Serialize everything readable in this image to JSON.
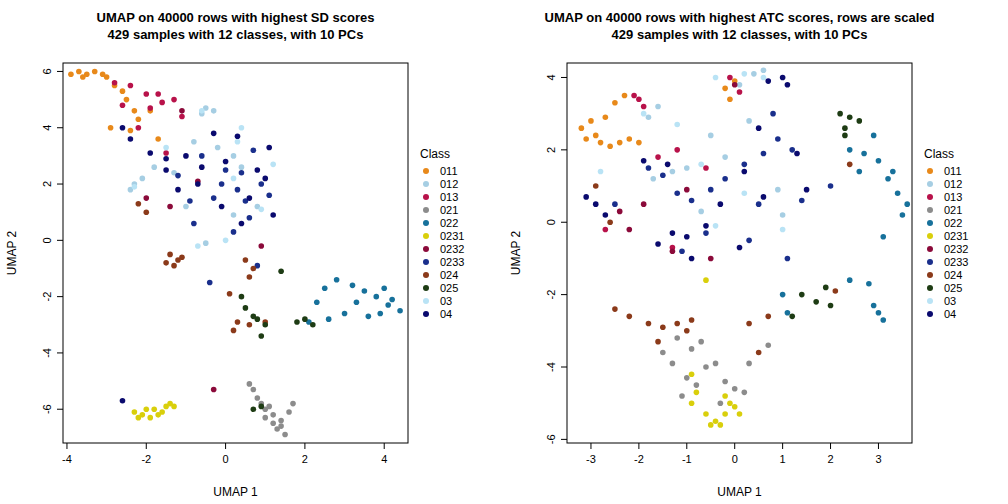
{
  "chart_data": [
    {
      "type": "scatter",
      "title": "UMAP on 40000 rows with highest SD scores",
      "subtitle": "429 samples with 12 classes, with 10 PCs",
      "x_label": "UMAP 1",
      "y_label": "UMAP 2",
      "legend_title": "Class",
      "legend": "right",
      "marker": "circle",
      "xlim": [
        -4.1,
        4.6
      ],
      "ylim": [
        -7.2,
        6.3
      ],
      "xticks": [
        -4,
        -2,
        0,
        2,
        4
      ],
      "yticks": [
        -6,
        -4,
        -2,
        0,
        2,
        4,
        6
      ],
      "series": [
        {
          "name": "011",
          "color": "#e8891a",
          "x": [
            -3.9,
            -3.7,
            -3.5,
            -3.3,
            -3.1,
            -3.0,
            -3.6,
            -2.8,
            -2.5,
            -2.3,
            -1.9,
            -2.9,
            -2.4,
            -1.7,
            -2.2,
            -2.6
          ],
          "y": [
            5.9,
            6.0,
            5.9,
            6.0,
            5.9,
            5.8,
            5.8,
            5.5,
            5.0,
            4.6,
            4.6,
            4.0,
            3.9,
            3.6,
            4.3,
            5.3
          ]
        },
        {
          "name": "012",
          "color": "#a6cee3",
          "x": [
            -0.5,
            -0.3,
            -0.6,
            -2.3,
            -2.4,
            -2.1,
            -1.3,
            -0.8,
            -0.2,
            0.2,
            -1.0,
            0.8,
            -0.5,
            0.2,
            -1.8,
            0.4
          ],
          "y": [
            4.7,
            4.6,
            4.5,
            2.0,
            1.8,
            2.2,
            2.4,
            3.5,
            3.3,
            3.0,
            1.2,
            1.2,
            -0.1,
            0.9,
            2.6,
            2.6
          ]
        },
        {
          "name": "013",
          "color": "#b8124a",
          "x": [
            -2.8,
            -2.4,
            -2.0,
            -1.7,
            -1.3,
            -1.9,
            -1.6,
            -2.2,
            -1.1,
            -1.5,
            -2.6
          ],
          "y": [
            5.6,
            5.5,
            5.2,
            5.2,
            5.0,
            4.7,
            4.9,
            4.0,
            4.4,
            3.1,
            4.8
          ]
        },
        {
          "name": "021",
          "color": "#8c8c8c",
          "x": [
            0.6,
            0.7,
            0.8,
            0.9,
            1.0,
            1.2,
            1.4,
            1.3,
            1.5,
            1.2,
            1.6,
            1.7,
            1.0,
            1.1,
            1.4
          ],
          "y": [
            -5.1,
            -5.3,
            -5.6,
            -5.8,
            -6.0,
            -6.2,
            -6.4,
            -6.7,
            -6.9,
            -6.5,
            -6.1,
            -5.8,
            -6.3,
            -5.9,
            -6.6
          ]
        },
        {
          "name": "022",
          "color": "#17719b",
          "x": [
            2.8,
            3.2,
            3.5,
            3.8,
            4.1,
            4.4,
            4.0,
            3.3,
            3.0,
            3.6,
            2.6,
            2.3,
            3.9,
            2.5,
            2.1,
            4.2
          ],
          "y": [
            -1.4,
            -1.6,
            -1.8,
            -2.0,
            -2.3,
            -2.5,
            -1.7,
            -2.2,
            -2.6,
            -2.7,
            -2.8,
            -2.2,
            -2.6,
            -1.7,
            -2.9,
            -2.1
          ]
        },
        {
          "name": "0231",
          "color": "#d9cf0b",
          "x": [
            -2.3,
            -2.1,
            -1.9,
            -1.8,
            -1.6,
            -1.5,
            -2.2,
            -1.7,
            -2.0,
            -1.4,
            -1.3
          ],
          "y": [
            -6.1,
            -6.2,
            -6.3,
            -6.0,
            -6.1,
            -5.9,
            -6.3,
            -6.2,
            -6.0,
            -5.8,
            -5.9
          ]
        },
        {
          "name": "0232",
          "color": "#8b0a3a",
          "x": [
            -0.3,
            -1.1,
            -1.4,
            0.9,
            -0.7,
            -2.0
          ],
          "y": [
            -5.3,
            4.6,
            1.2,
            -0.2,
            2.1,
            1.5
          ]
        },
        {
          "name": "0233",
          "color": "#1a2f8c",
          "x": [
            0.0,
            0.3,
            -0.3,
            0.5,
            -0.8,
            0.7,
            0.9,
            0.2,
            -1.2,
            -0.6,
            0.6,
            1.1,
            -0.1,
            0.4,
            -0.9,
            0.8,
            -0.4
          ],
          "y": [
            2.5,
            1.8,
            1.5,
            1.4,
            0.6,
            3.2,
            2.0,
            0.3,
            2.3,
            3.0,
            0.8,
            1.6,
            2.0,
            2.4,
            1.4,
            -0.9,
            -1.5
          ]
        },
        {
          "name": "024",
          "color": "#8b3a1a",
          "x": [
            -1.4,
            -1.2,
            -1.3,
            -1.5,
            -1.1,
            0.5,
            0.7,
            0.1,
            0.3,
            0.2,
            0.6,
            -2.2,
            -2.0,
            1.0,
            0.6
          ],
          "y": [
            -0.5,
            -0.7,
            -0.9,
            -0.8,
            -0.6,
            -0.7,
            -1.0,
            -1.9,
            -2.9,
            -3.2,
            -3.0,
            1.3,
            1.0,
            -2.9,
            -1.3
          ]
        },
        {
          "name": "025",
          "color": "#1e3c14",
          "x": [
            0.4,
            0.5,
            0.8,
            1.0,
            0.9,
            0.7,
            1.4,
            2.0,
            2.2,
            1.8,
            0.7,
            0.9
          ],
          "y": [
            -2.0,
            -2.4,
            -2.8,
            -3.0,
            -3.4,
            -2.7,
            -1.1,
            -2.8,
            -3.0,
            -2.9,
            -6.0,
            -5.9
          ]
        },
        {
          "name": "03",
          "color": "#b9e3f5",
          "x": [
            -0.6,
            0.3,
            -1.5,
            -2.3,
            0.2,
            0.9,
            0.0,
            1.2,
            -0.7,
            0.4
          ],
          "y": [
            4.6,
            3.5,
            3.3,
            1.9,
            2.2,
            1.1,
            0.0,
            2.7,
            -0.2,
            4.0
          ]
        },
        {
          "name": "04",
          "color": "#0a0a6e",
          "x": [
            -2.6,
            -2.4,
            -1.9,
            -1.5,
            -0.3,
            0.3,
            1.0,
            1.2,
            0.6,
            -0.1,
            -0.7,
            -1.2,
            0.0,
            1.1,
            0.4,
            -0.6,
            -1.0,
            0.8,
            -2.6,
            -1.5
          ],
          "y": [
            4.0,
            3.6,
            3.1,
            2.5,
            3.8,
            3.7,
            2.2,
            0.9,
            1.5,
            1.2,
            2.0,
            1.8,
            2.8,
            3.3,
            0.6,
            2.6,
            3.0,
            2.5,
            -5.7,
            2.9
          ]
        }
      ]
    },
    {
      "type": "scatter",
      "title": "UMAP on 40000 rows with highest ATC scores, rows are scaled",
      "subtitle": "429 samples with 12 classes, with 10 PCs",
      "x_label": "UMAP 1",
      "y_label": "UMAP 2",
      "legend_title": "Class",
      "legend": "right",
      "marker": "circle",
      "xlim": [
        -3.5,
        3.7
      ],
      "ylim": [
        -6.1,
        4.4
      ],
      "xticks": [
        -3,
        -2,
        -1,
        0,
        1,
        2,
        3
      ],
      "yticks": [
        -6,
        -4,
        -2,
        0,
        2,
        4
      ],
      "series": [
        {
          "name": "011",
          "color": "#e8891a",
          "x": [
            -3.2,
            -3.1,
            -3.0,
            -2.8,
            -2.6,
            -2.4,
            -2.2,
            -2.5,
            -2.3,
            -2.7,
            -2.0,
            -2.9,
            -0.2,
            0.0,
            -0.1
          ],
          "y": [
            2.6,
            2.3,
            2.8,
            2.2,
            2.1,
            2.2,
            2.3,
            3.3,
            3.5,
            2.9,
            2.2,
            2.4,
            3.7,
            3.9,
            3.4
          ]
        },
        {
          "name": "012",
          "color": "#a6cee3",
          "x": [
            0.1,
            0.4,
            0.6,
            -1.8,
            -1.6,
            -1.3,
            -1.0,
            -0.5,
            -0.2,
            0.9,
            -0.7,
            1.0,
            -1.7,
            0.3
          ],
          "y": [
            3.8,
            4.1,
            4.2,
            2.9,
            3.2,
            1.4,
            1.5,
            2.4,
            1.8,
            0.9,
            0.3,
            0.2,
            1.2,
            2.8
          ]
        },
        {
          "name": "013",
          "color": "#b8124a",
          "x": [
            -2.1,
            -1.9,
            -1.6,
            -1.2,
            -0.6,
            -1.3,
            -2.7,
            -0.1,
            0.1,
            -2.0
          ],
          "y": [
            3.5,
            3.2,
            1.8,
            2.0,
            1.5,
            -0.7,
            -0.2,
            4.0,
            3.6,
            3.4
          ]
        },
        {
          "name": "021",
          "color": "#8c8c8c",
          "x": [
            -1.5,
            -1.3,
            -1.0,
            -0.8,
            -0.6,
            -0.4,
            -0.2,
            0.0,
            0.2,
            -0.9,
            -1.1,
            -0.3,
            0.3,
            -1.2,
            -0.7,
            0.7
          ],
          "y": [
            -3.6,
            -3.9,
            -4.3,
            -4.5,
            -4.0,
            -3.9,
            -4.4,
            -4.6,
            -4.7,
            -3.5,
            -4.8,
            -5.0,
            -3.9,
            -3.2,
            -3.3,
            -3.4
          ]
        },
        {
          "name": "022",
          "color": "#17719b",
          "x": [
            2.4,
            2.7,
            3.0,
            3.2,
            3.4,
            3.5,
            3.3,
            2.9,
            2.6,
            3.1,
            2.4,
            2.8,
            3.0,
            3.1,
            2.9,
            1.1,
            1.0,
            3.6
          ],
          "y": [
            2.0,
            1.9,
            1.7,
            1.2,
            0.8,
            0.2,
            1.4,
            2.4,
            1.4,
            -0.4,
            -1.6,
            -1.7,
            -2.5,
            -2.7,
            -2.3,
            -2.5,
            -2.0,
            0.5
          ]
        },
        {
          "name": "0231",
          "color": "#d9cf0b",
          "x": [
            -0.9,
            -0.8,
            -0.9,
            -0.6,
            -0.5,
            -0.4,
            -0.2,
            0.0,
            -0.1,
            -0.2,
            -0.3,
            0.1,
            -0.6
          ],
          "y": [
            -4.2,
            -4.7,
            -5.0,
            -5.3,
            -5.6,
            -5.5,
            -5.3,
            -5.1,
            -5.0,
            -4.8,
            -5.6,
            -5.3,
            -1.6
          ]
        },
        {
          "name": "0232",
          "color": "#8b0a3a",
          "x": [
            -2.4,
            -2.2,
            -1.9,
            -1.0,
            -1.3,
            -0.5,
            0.0
          ],
          "y": [
            0.3,
            -0.2,
            0.5,
            0.9,
            -0.8,
            -1.0,
            3.8
          ]
        },
        {
          "name": "0233",
          "color": "#1a2f8c",
          "x": [
            -1.5,
            -1.2,
            -0.9,
            -0.5,
            -0.2,
            0.2,
            0.6,
            0.9,
            1.2,
            0.5,
            -0.6,
            -1.1,
            1.4,
            1.1,
            0.8,
            -1.8,
            0.3,
            -2.5,
            2.0
          ],
          "y": [
            1.3,
            0.8,
            0.6,
            0.9,
            1.2,
            1.6,
            1.9,
            2.3,
            2.0,
            0.5,
            -0.3,
            -0.8,
            0.6,
            -1.0,
            3.0,
            1.5,
            -0.5,
            0.5,
            1.0
          ]
        },
        {
          "name": "024",
          "color": "#8b3a1a",
          "x": [
            -2.5,
            -2.2,
            -1.8,
            -1.5,
            -1.2,
            -1.0,
            -0.9,
            0.3,
            0.7,
            -1.6,
            -2.9,
            -2.6,
            2.1,
            2.4,
            0.5
          ],
          "y": [
            -2.4,
            -2.6,
            -2.8,
            -2.9,
            -2.8,
            -3.0,
            -2.7,
            -2.8,
            -2.6,
            -3.3,
            1.0,
            0.0,
            -1.9,
            1.6,
            -3.6
          ]
        },
        {
          "name": "025",
          "color": "#1e3c14",
          "x": [
            2.2,
            2.4,
            2.6,
            2.3,
            1.4,
            1.7,
            1.9,
            2.0,
            1.2,
            2.3
          ],
          "y": [
            3.0,
            2.9,
            2.8,
            2.6,
            -2.0,
            -2.2,
            -1.8,
            -2.3,
            -2.6,
            2.4
          ]
        },
        {
          "name": "03",
          "color": "#b9e3f5",
          "x": [
            0.2,
            0.6,
            -0.4,
            -1.9,
            -1.2,
            -0.7,
            -2.8,
            0.2,
            1.0,
            -0.4
          ],
          "y": [
            4.1,
            4.0,
            4.0,
            3.0,
            2.7,
            1.6,
            1.4,
            0.8,
            -0.2,
            -0.1
          ]
        },
        {
          "name": "04",
          "color": "#0a0a6e",
          "x": [
            -3.1,
            -2.9,
            -2.7,
            -1.9,
            -1.4,
            -1.3,
            -1.0,
            -0.9,
            -0.6,
            0.2,
            0.5,
            0.7,
            1.0,
            1.1,
            1.5,
            0.6,
            -0.3,
            0.1,
            -1.6,
            1.3
          ],
          "y": [
            0.7,
            0.5,
            0.2,
            1.7,
            1.6,
            -0.3,
            -0.4,
            -1.0,
            -0.1,
            1.4,
            2.6,
            3.9,
            4.0,
            3.8,
            0.9,
            0.7,
            0.5,
            -0.7,
            -0.6,
            1.9
          ]
        }
      ]
    }
  ]
}
